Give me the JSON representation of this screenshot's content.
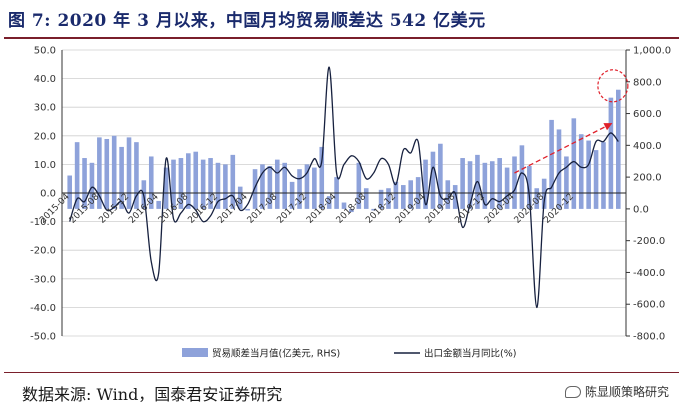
{
  "title": "图 7:  2020 年 3 月以来，中国月均贸易顺差达 542 亿美元",
  "source": "数据来源:  Wind，国泰君安证券研究",
  "brand": "陈显顺策略研究",
  "chart_data": {
    "type": "bar",
    "colors": {
      "bar": "#8ea2da",
      "line": "#17213f",
      "arrow": "#e0202a",
      "highlight": "#e0202a"
    },
    "left_axis": {
      "ylim": [
        -50,
        50
      ],
      "ticks": [
        "50.0",
        "40.0",
        "30.0",
        "20.0",
        "10.0",
        "0.0",
        "-10.0",
        "-20.0",
        "-30.0",
        "-40.0",
        "-50.0"
      ]
    },
    "right_axis": {
      "ylim": [
        -800,
        1000
      ],
      "ticks": [
        "1,000.0",
        "800.0",
        "600.0",
        "400.0",
        "200.0",
        "0.0",
        "-200.0",
        "-400.0",
        "-600.0",
        "-800.0"
      ]
    },
    "x_tick_labels": [
      "2015-04",
      "2015-08",
      "2015-12",
      "2016-04",
      "2016-08",
      "2016-12",
      "2017-04",
      "2017-08",
      "2017-12",
      "2018-04",
      "2018-08",
      "2018-12",
      "2019-04",
      "2019-08",
      "2019-12",
      "2020-04",
      "2020-08",
      "2020-12"
    ],
    "grid": true,
    "legend_position": "bottom",
    "series": [
      {
        "name": "贸易顺差当月值(亿美元, RHS)",
        "type": "bar",
        "axis": "right",
        "values": [
          210,
          420,
          320,
          290,
          450,
          440,
          460,
          390,
          450,
          420,
          180,
          330,
          50,
          260,
          310,
          320,
          350,
          360,
          310,
          320,
          290,
          280,
          340,
          140,
          -10,
          250,
          280,
          270,
          310,
          290,
          170,
          250,
          280,
          260,
          390,
          80,
          200,
          40,
          -20,
          290,
          130,
          -10,
          120,
          130,
          170,
          150,
          180,
          200,
          310,
          360,
          410,
          180,
          150,
          320,
          300,
          340,
          290,
          300,
          320,
          260,
          330,
          400,
          270,
          130,
          190,
          560,
          500,
          330,
          570,
          470,
          430,
          370,
          420,
          700,
          750
        ]
      },
      {
        "name": "出口金额当月同比(%)",
        "type": "line",
        "axis": "left",
        "values": [
          -10,
          -2,
          -3,
          2,
          -1,
          -6,
          -5,
          -3,
          -7,
          -1,
          -1,
          -24,
          -28,
          12,
          -9,
          -7,
          -4,
          -6,
          -10,
          -8,
          -3,
          -2,
          -1,
          -6,
          -4,
          2,
          7,
          9,
          7,
          9,
          6,
          5,
          7,
          12,
          11,
          44,
          7,
          10,
          13,
          11,
          5,
          7,
          12,
          10,
          3,
          15,
          14,
          18,
          -4,
          9,
          -1,
          -2,
          0,
          -12,
          -4,
          4,
          -4,
          -2,
          -3,
          -1,
          1,
          7,
          -1,
          -40,
          -3,
          2,
          7,
          9,
          11,
          9,
          10,
          18,
          18,
          21,
          18
        ]
      }
    ]
  }
}
